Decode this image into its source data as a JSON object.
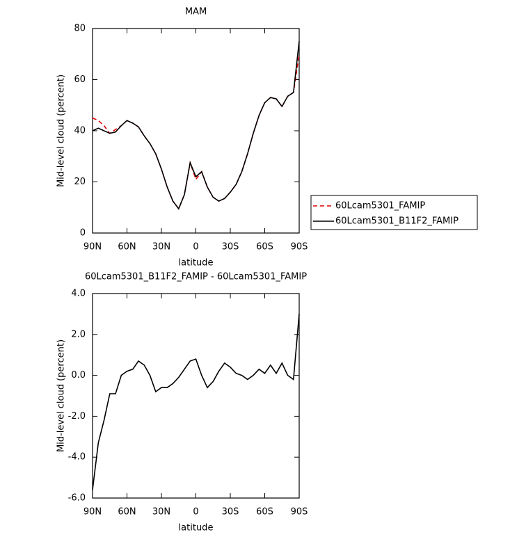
{
  "chart_data": [
    {
      "type": "line",
      "title": "MAM",
      "x_label": "latitude",
      "y_label": "Mid-level cloud (percent)",
      "x": [
        90,
        85,
        80,
        75,
        70,
        65,
        60,
        55,
        50,
        45,
        40,
        35,
        30,
        25,
        20,
        15,
        10,
        5,
        0,
        -5,
        -10,
        -15,
        -20,
        -25,
        -30,
        -35,
        -40,
        -45,
        -50,
        -55,
        -60,
        -65,
        -70,
        -75,
        -80,
        -85,
        -90
      ],
      "series": [
        {
          "name": "60Lcam5301_FAMIP",
          "color": "#e00000",
          "dash": true,
          "values": [
            45,
            44,
            42,
            39,
            40.5,
            42,
            44,
            43,
            41.5,
            38,
            35,
            31,
            25,
            18,
            12.5,
            9.5,
            15,
            27.5,
            21,
            24,
            18,
            14,
            12.5,
            13.5,
            16,
            19,
            24,
            31,
            39,
            46,
            51,
            53,
            52.5,
            49.5,
            53.5,
            55,
            70
          ]
        },
        {
          "name": "60Lcam5301_B11F2_FAMIP",
          "color": "#000000",
          "dash": false,
          "values": [
            40,
            41,
            40,
            39,
            39.5,
            42,
            44,
            43,
            41.5,
            38,
            35,
            31,
            25,
            18,
            12.5,
            9.5,
            15,
            27.5,
            22,
            24,
            18,
            14,
            12.5,
            13.5,
            16,
            19,
            24,
            31,
            39,
            46,
            51,
            53,
            52.5,
            49.5,
            53.5,
            55,
            75
          ]
        }
      ],
      "xlim": [
        90,
        -90
      ],
      "xticks": [
        {
          "value": 90,
          "label": "90N"
        },
        {
          "value": 60,
          "label": "60N"
        },
        {
          "value": 30,
          "label": "30N"
        },
        0,
        {
          "value": -30,
          "label": "30S"
        },
        {
          "value": -60,
          "label": "60S"
        },
        {
          "value": -90,
          "label": "90S"
        }
      ],
      "ylim": [
        0,
        80
      ],
      "yticks": [
        0,
        20,
        40,
        60,
        80
      ],
      "legend": "right"
    },
    {
      "type": "line",
      "title": "60Lcam5301_B11F2_FAMIP - 60Lcam5301_FAMIP",
      "x_label": "latitude",
      "y_label": "Mid-level cloud (percent)",
      "x": [
        90,
        85,
        80,
        75,
        70,
        65,
        60,
        55,
        50,
        45,
        40,
        35,
        30,
        25,
        20,
        15,
        10,
        5,
        0,
        -5,
        -10,
        -15,
        -20,
        -25,
        -30,
        -35,
        -40,
        -45,
        -50,
        -55,
        -60,
        -65,
        -70,
        -75,
        -80,
        -85,
        -90
      ],
      "values": [
        -5.6,
        -3.3,
        -2.2,
        -0.9,
        -0.9,
        0,
        0.2,
        0.3,
        0.7,
        0.5,
        0,
        -0.8,
        -0.6,
        -0.6,
        -0.4,
        -0.1,
        0.3,
        0.7,
        0.8,
        0,
        -0.6,
        -0.3,
        0.2,
        0.6,
        0.4,
        0.1,
        0,
        -0.2,
        0,
        0.3,
        0.1,
        0.5,
        0.1,
        0.6,
        0,
        -0.2,
        3.0
      ],
      "color": "#000000",
      "xlim": [
        90,
        -90
      ],
      "xticks": [
        {
          "value": 90,
          "label": "90N"
        },
        {
          "value": 60,
          "label": "60N"
        },
        {
          "value": 30,
          "label": "30N"
        },
        0,
        {
          "value": -30,
          "label": "30S"
        },
        {
          "value": -60,
          "label": "60S"
        },
        {
          "value": -90,
          "label": "90S"
        }
      ],
      "ylim": [
        -6,
        4
      ],
      "yticks": [
        {
          "value": 4,
          "label": "4.0"
        },
        {
          "value": 2,
          "label": "2.0"
        },
        {
          "value": 0,
          "label": "0.0"
        },
        {
          "value": -2,
          "label": "-2.0"
        },
        {
          "value": -4,
          "label": "-4.0"
        },
        {
          "value": -6,
          "label": "-6.0"
        }
      ]
    }
  ]
}
